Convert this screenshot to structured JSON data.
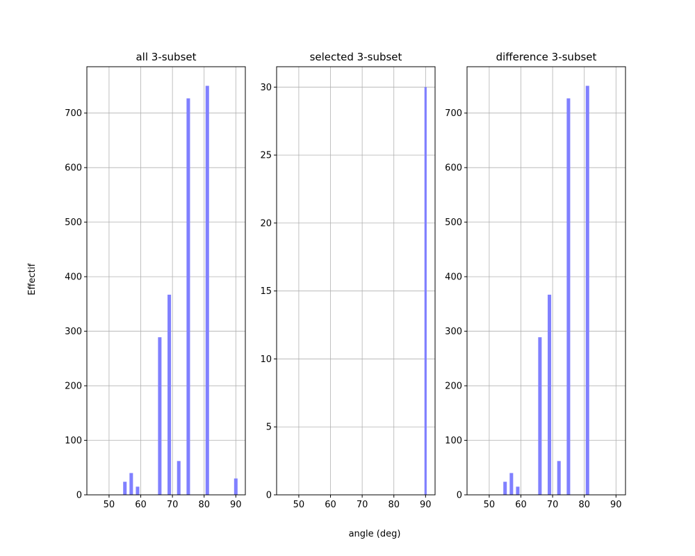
{
  "figure": {
    "xlabel": "angle (deg)",
    "ylabel": "Effectif"
  },
  "chart_data": [
    {
      "type": "bar",
      "title": "all 3-subset",
      "xlim": [
        43,
        93
      ],
      "ylim": [
        0,
        785
      ],
      "xticks": [
        50,
        60,
        70,
        80,
        90
      ],
      "yticks": [
        0,
        100,
        200,
        300,
        400,
        500,
        600,
        700
      ],
      "grid": true,
      "bar_color": "#8080ff",
      "bar_width": 1.1,
      "x": [
        55,
        57,
        59,
        66,
        69,
        72,
        75,
        81,
        90
      ],
      "values": [
        24,
        40,
        15,
        289,
        367,
        62,
        727,
        750,
        30
      ]
    },
    {
      "type": "bar",
      "title": "selected 3-subset",
      "xlim": [
        43,
        93
      ],
      "ylim": [
        0,
        31.5
      ],
      "xticks": [
        50,
        60,
        70,
        80,
        90
      ],
      "yticks": [
        0,
        5,
        10,
        15,
        20,
        25,
        30
      ],
      "grid": true,
      "bar_color": "#8080ff",
      "bar_width": 0.7,
      "x": [
        90
      ],
      "values": [
        30
      ]
    },
    {
      "type": "bar",
      "title": "difference 3-subset",
      "xlim": [
        43,
        93
      ],
      "ylim": [
        0,
        785
      ],
      "xticks": [
        50,
        60,
        70,
        80,
        90
      ],
      "yticks": [
        0,
        100,
        200,
        300,
        400,
        500,
        600,
        700
      ],
      "grid": true,
      "bar_color": "#8080ff",
      "bar_width": 1.1,
      "x": [
        55,
        57,
        59,
        66,
        69,
        72,
        75,
        81
      ],
      "values": [
        24,
        40,
        15,
        289,
        367,
        62,
        727,
        750
      ]
    }
  ]
}
